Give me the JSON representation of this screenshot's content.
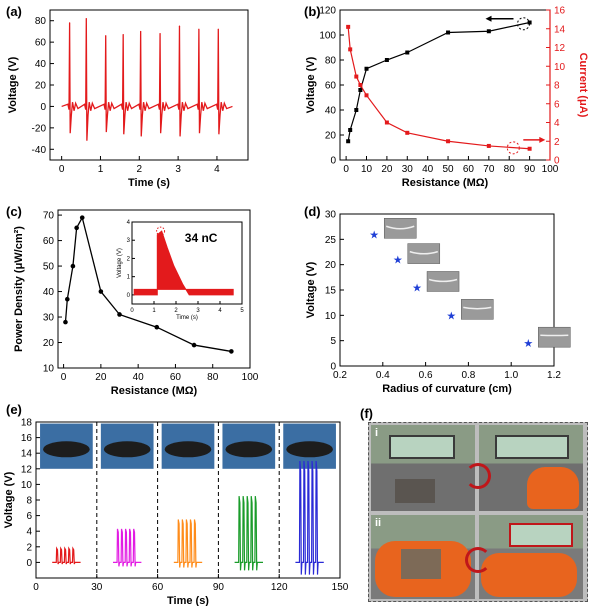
{
  "chart_data": [
    {
      "panel": "(a)",
      "type": "line",
      "xlabel": "Time (s)",
      "ylabel": "Voltage (V)",
      "xlim": [
        -0.3,
        4.8
      ],
      "ylim": [
        -50,
        90
      ],
      "xticks": [
        0,
        1,
        2,
        3,
        4
      ],
      "yticks": [
        -40,
        -20,
        0,
        20,
        40,
        60,
        80
      ],
      "color": "#e31a1c",
      "peaks": [
        {
          "x": 0.22,
          "max": 78,
          "min": -25
        },
        {
          "x": 0.65,
          "max": 82,
          "min": -32
        },
        {
          "x": 1.15,
          "max": 66,
          "min": -24
        },
        {
          "x": 1.6,
          "max": 67,
          "min": -26
        },
        {
          "x": 2.05,
          "max": 70,
          "min": -28
        },
        {
          "x": 2.55,
          "max": 68,
          "min": -25
        },
        {
          "x": 3.05,
          "max": 75,
          "min": -28
        },
        {
          "x": 3.55,
          "max": 72,
          "min": -25
        },
        {
          "x": 4.05,
          "max": 72,
          "min": -26
        }
      ]
    },
    {
      "panel": "(b)",
      "type": "line",
      "xlabel": "Resistance (MΩ)",
      "ylabel": "Voltage (V)",
      "y2label": "Current (μA)",
      "xlim": [
        -3,
        100
      ],
      "ylim": [
        0,
        120
      ],
      "y2lim": [
        0,
        16
      ],
      "xticks": [
        0,
        10,
        20,
        30,
        40,
        50,
        60,
        70,
        80,
        90,
        100
      ],
      "yticks": [
        0,
        20,
        40,
        60,
        80,
        100,
        120
      ],
      "y2ticks": [
        0,
        2,
        4,
        6,
        8,
        10,
        12,
        14,
        16
      ],
      "x": [
        1,
        2,
        5,
        7,
        10,
        20,
        30,
        50,
        70,
        90
      ],
      "series": [
        {
          "name": "",
          "axis": "left",
          "color": "#000000",
          "values": [
            15,
            24,
            40,
            56,
            73,
            80,
            86,
            102,
            103,
            110
          ]
        },
        {
          "name": "",
          "axis": "right",
          "color": "#e31a1c",
          "values": [
            14.2,
            11.8,
            8.9,
            8.0,
            6.9,
            4.0,
            2.9,
            2.0,
            1.5,
            1.2
          ]
        }
      ]
    },
    {
      "panel": "(c)",
      "type": "line",
      "xlabel": "Resistance (MΩ)",
      "ylabel": "Power Density (μW/cm²)",
      "xlim": [
        -3,
        100
      ],
      "ylim": [
        10,
        72
      ],
      "xticks": [
        0,
        20,
        40,
        60,
        80,
        100
      ],
      "yticks": [
        10,
        20,
        30,
        40,
        50,
        60,
        70
      ],
      "x": [
        1,
        2,
        5,
        7,
        10,
        20,
        30,
        50,
        70,
        90
      ],
      "values": [
        28,
        37,
        50,
        65,
        69,
        40,
        31,
        26,
        19,
        16.5
      ],
      "inset": {
        "type": "area",
        "annotation": "34 nC",
        "xlabel": "Time (s)",
        "ylabel": "Voltage (V)",
        "xlim": [
          0,
          5
        ],
        "ylim": [
          -0.5,
          4
        ],
        "xticks": [
          0,
          1,
          2,
          3,
          4,
          5
        ],
        "yticks": [
          0,
          1,
          2,
          3,
          4
        ],
        "color": "#e31a1c"
      }
    },
    {
      "panel": "(d)",
      "type": "scatter",
      "xlabel": "Radius of curvature (cm)",
      "ylabel": "Voltage (V)",
      "xlim": [
        0.2,
        1.2
      ],
      "ylim": [
        0,
        30
      ],
      "xticks": [
        0.2,
        0.4,
        0.6,
        0.8,
        1.0,
        1.2
      ],
      "yticks": [
        0,
        5,
        10,
        15,
        20,
        25,
        30
      ],
      "color": "#1f3fd6",
      "x": [
        0.36,
        0.47,
        0.56,
        0.72,
        1.08
      ],
      "values": [
        26,
        21,
        15.5,
        10,
        4.5
      ]
    },
    {
      "panel": "(e)",
      "type": "line",
      "xlabel": "Time (s)",
      "ylabel": "Voltage (V)",
      "xlim": [
        0,
        150
      ],
      "ylim": [
        -2,
        18
      ],
      "xticks": [
        0,
        30,
        60,
        90,
        120,
        150
      ],
      "yticks": [
        0,
        2,
        4,
        6,
        8,
        10,
        12,
        14,
        16,
        18
      ],
      "groups": [
        {
          "x_start": 8,
          "peak": 1.8,
          "color": "#e31a1c"
        },
        {
          "x_start": 38,
          "peak": 4.3,
          "color": "#e21ce3"
        },
        {
          "x_start": 68,
          "peak": 5.5,
          "color": "#ff8c1a"
        },
        {
          "x_start": 98,
          "peak": 8.5,
          "color": "#1a9c2a"
        },
        {
          "x_start": 128,
          "peak": 13,
          "color": "#2a2ad6"
        }
      ]
    }
  ],
  "panel_f": {
    "label": "(f)",
    "sublabels": [
      "i",
      "ii"
    ]
  }
}
